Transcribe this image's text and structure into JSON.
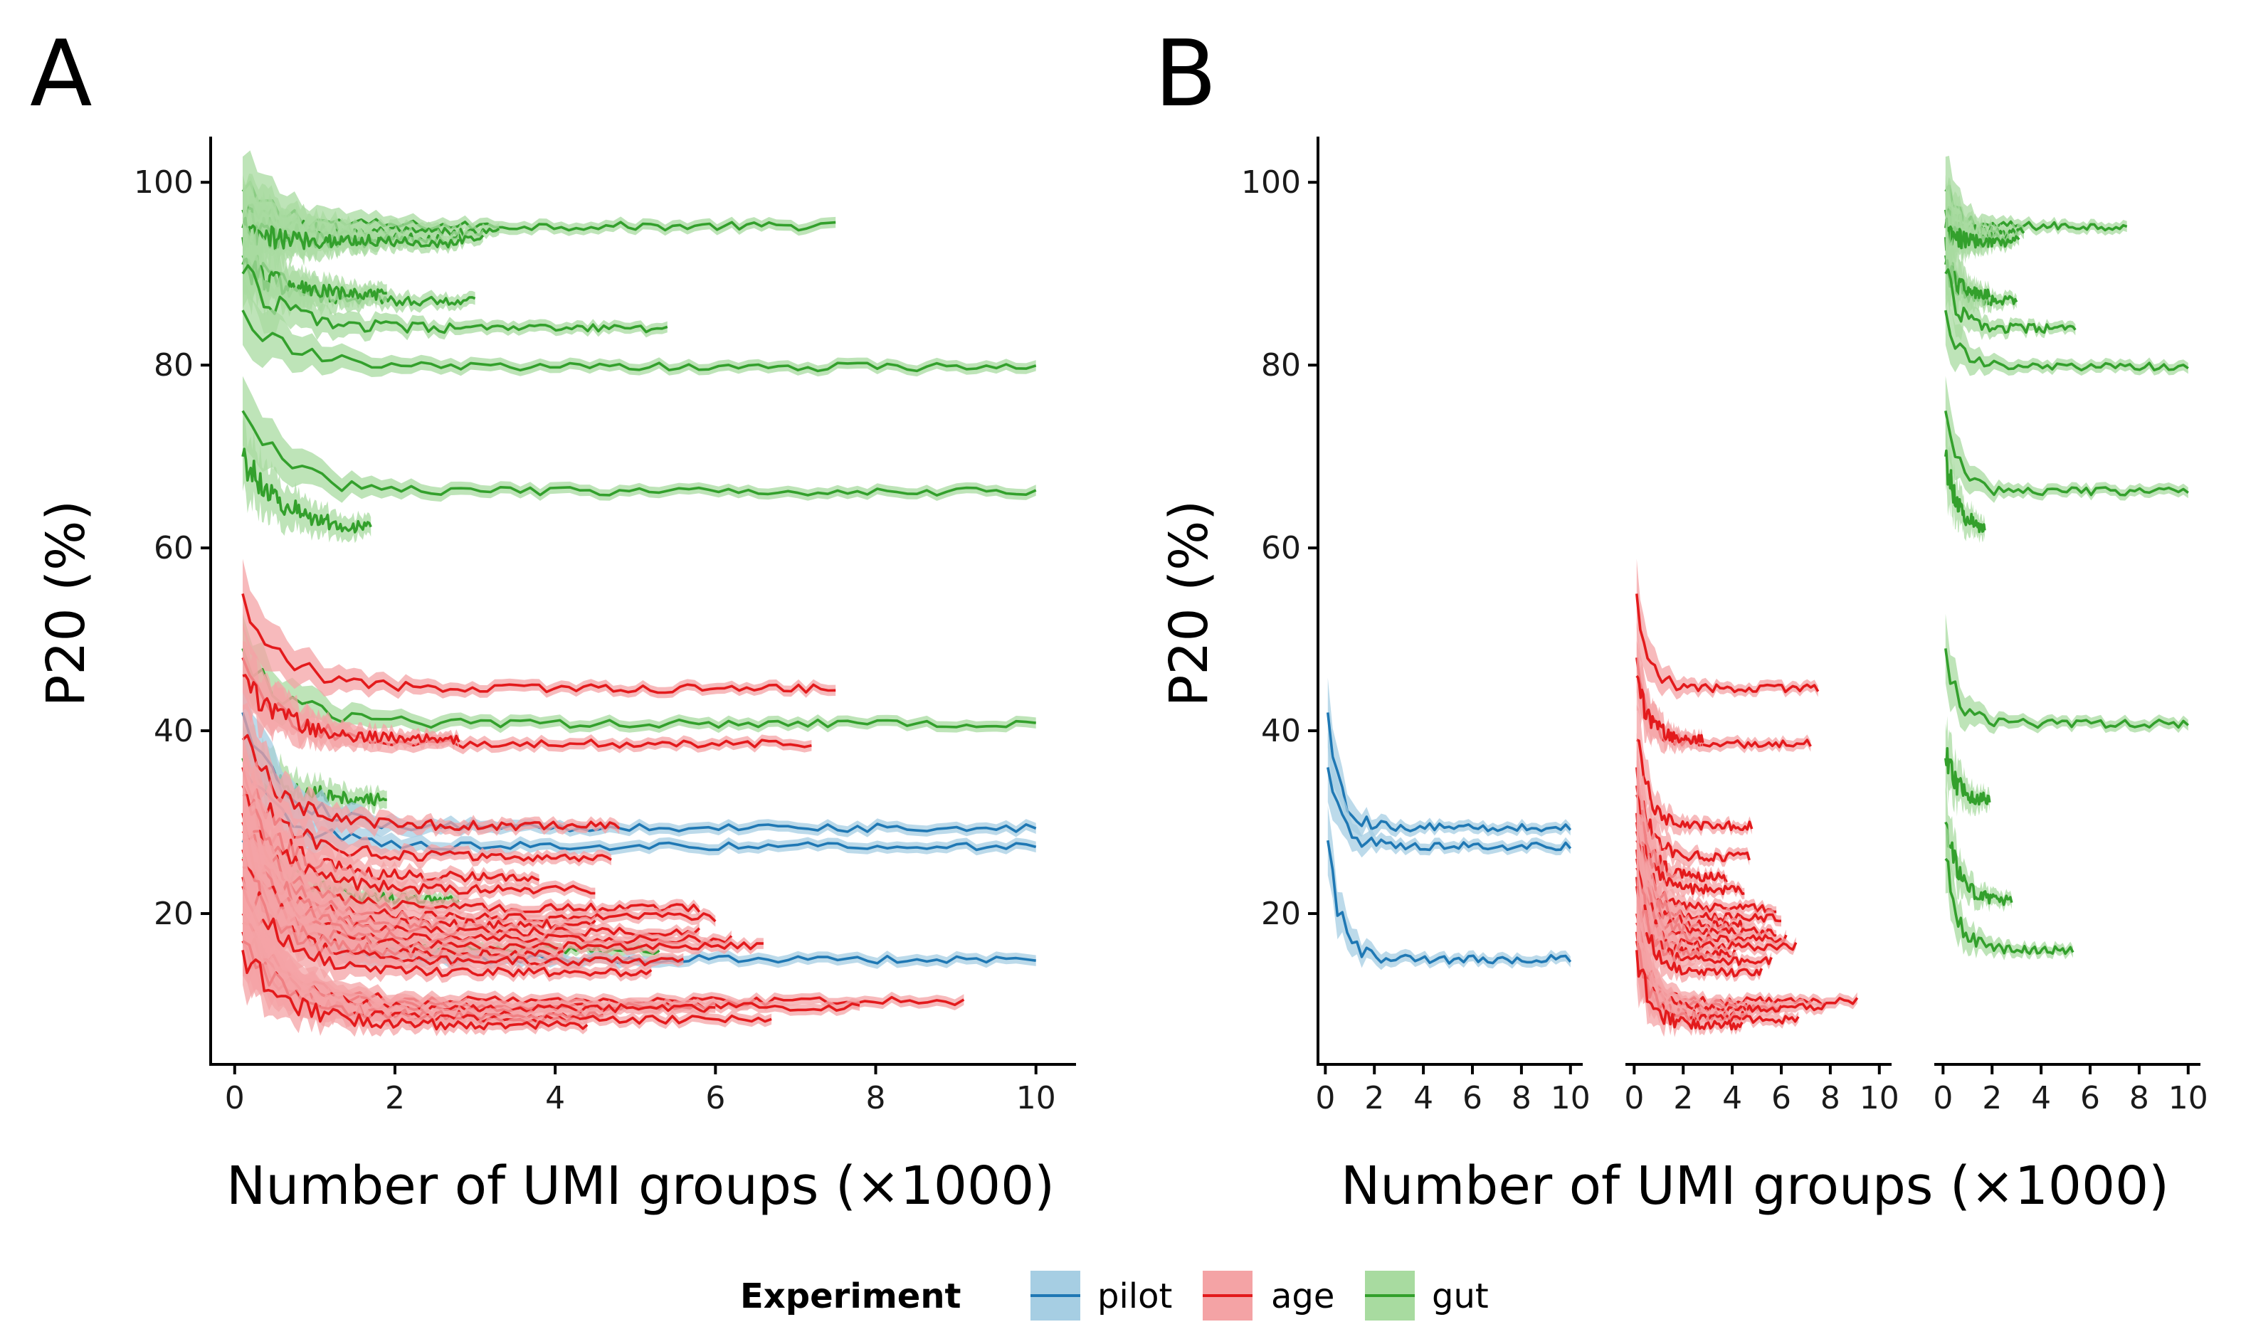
{
  "panels": {
    "a": {
      "letter": "A"
    },
    "b": {
      "letter": "B"
    }
  },
  "axes": {
    "ylabel": "P20 (%)",
    "xlabel": "Number of UMI groups (×1000)"
  },
  "legend": {
    "title": "Experiment",
    "placement": "bottom",
    "items": [
      {
        "key": "pilot",
        "label": "pilot",
        "color": "#1f78b4",
        "fill": "#a6cee3"
      },
      {
        "key": "age",
        "label": "age",
        "color": "#e31a1c",
        "fill": "#f4a3a5"
      },
      {
        "key": "gut",
        "label": "gut",
        "color": "#33a02c",
        "fill": "#a8dba0"
      }
    ]
  },
  "chart_data": [
    {
      "panel": "A",
      "type": "line",
      "xlabel": "Number of UMI groups (×1000)",
      "ylabel": "P20 (%)",
      "xlim": [
        -0.3,
        10.5
      ],
      "ylim": [
        3.5,
        105
      ],
      "x_ticks": [
        0,
        2,
        4,
        6,
        8,
        10
      ],
      "x_tick_labels": [
        "0",
        "2",
        "4",
        "6",
        "8",
        "10"
      ],
      "y_ticks": [
        20,
        40,
        60,
        80,
        100
      ],
      "y_tick_labels": [
        "20",
        "40",
        "60",
        "80",
        "100"
      ],
      "grid": false,
      "series": [
        {
          "group": "gut",
          "x0": 0.1,
          "xmax": 7.5,
          "start": 99,
          "end": 95.2
        },
        {
          "group": "gut",
          "x0": 0.1,
          "xmax": 3.3,
          "start": 97,
          "end": 94.5
        },
        {
          "group": "gut",
          "x0": 0.1,
          "xmax": 3.1,
          "start": 96,
          "end": 93.8
        },
        {
          "group": "gut",
          "x0": 0.1,
          "xmax": 2.8,
          "start": 95,
          "end": 93.4
        },
        {
          "group": "gut",
          "x0": 0.1,
          "xmax": 1.8,
          "start": 94,
          "end": 93.6
        },
        {
          "group": "gut",
          "x0": 0.1,
          "xmax": 3.0,
          "start": 92,
          "end": 87.0
        },
        {
          "group": "gut",
          "x0": 0.1,
          "xmax": 1.9,
          "start": 91,
          "end": 87.5
        },
        {
          "group": "gut",
          "x0": 0.1,
          "xmax": 5.4,
          "start": 90,
          "end": 84.0
        },
        {
          "group": "gut",
          "x0": 0.1,
          "xmax": 10.0,
          "start": 86,
          "end": 79.8
        },
        {
          "group": "gut",
          "x0": 0.1,
          "xmax": 10.0,
          "start": 75,
          "end": 66.2
        },
        {
          "group": "gut",
          "x0": 0.1,
          "xmax": 1.7,
          "start": 70,
          "end": 61.8
        },
        {
          "group": "gut",
          "x0": 0.1,
          "xmax": 10.0,
          "start": 49,
          "end": 40.8
        },
        {
          "group": "gut",
          "x0": 0.1,
          "xmax": 1.9,
          "start": 37,
          "end": 32.3
        },
        {
          "group": "gut",
          "x0": 0.1,
          "xmax": 2.8,
          "start": 30,
          "end": 21.4
        },
        {
          "group": "gut",
          "x0": 0.1,
          "xmax": 5.3,
          "start": 26,
          "end": 16.0
        },
        {
          "group": "pilot",
          "x0": 0.1,
          "xmax": 10.0,
          "start": 42,
          "end": 29.4
        },
        {
          "group": "pilot",
          "x0": 0.1,
          "xmax": 10.0,
          "start": 36,
          "end": 27.4
        },
        {
          "group": "pilot",
          "x0": 0.1,
          "xmax": 10.0,
          "start": 28,
          "end": 15.0
        },
        {
          "group": "age",
          "x0": 0.1,
          "xmax": 7.5,
          "start": 55,
          "end": 44.6
        },
        {
          "group": "age",
          "x0": 0.1,
          "xmax": 7.2,
          "start": 48,
          "end": 38.6
        },
        {
          "group": "age",
          "x0": 0.1,
          "xmax": 2.8,
          "start": 46,
          "end": 39.0
        },
        {
          "group": "age",
          "x0": 0.1,
          "xmax": 4.8,
          "start": 39,
          "end": 29.6
        },
        {
          "group": "age",
          "x0": 0.1,
          "xmax": 4.7,
          "start": 36,
          "end": 26.2
        },
        {
          "group": "age",
          "x0": 0.1,
          "xmax": 3.8,
          "start": 34,
          "end": 24.0
        },
        {
          "group": "age",
          "x0": 0.1,
          "xmax": 4.5,
          "start": 33,
          "end": 22.6
        },
        {
          "group": "age",
          "x0": 0.1,
          "xmax": 5.8,
          "start": 31,
          "end": 20.6
        },
        {
          "group": "age",
          "x0": 0.1,
          "xmax": 6.0,
          "start": 30,
          "end": 19.6
        },
        {
          "group": "age",
          "x0": 0.1,
          "xmax": 4.5,
          "start": 29,
          "end": 18.8
        },
        {
          "group": "age",
          "x0": 0.1,
          "xmax": 5.8,
          "start": 28,
          "end": 18.0
        },
        {
          "group": "age",
          "x0": 0.1,
          "xmax": 6.2,
          "start": 27,
          "end": 17.2
        },
        {
          "group": "age",
          "x0": 0.1,
          "xmax": 6.6,
          "start": 26,
          "end": 16.4
        },
        {
          "group": "age",
          "x0": 0.1,
          "xmax": 4.1,
          "start": 25,
          "end": 15.6
        },
        {
          "group": "age",
          "x0": 0.1,
          "xmax": 5.6,
          "start": 24,
          "end": 14.8
        },
        {
          "group": "age",
          "x0": 0.1,
          "xmax": 5.2,
          "start": 23,
          "end": 13.6
        },
        {
          "group": "age",
          "x0": 0.1,
          "xmax": 9.1,
          "start": 20,
          "end": 10.4
        },
        {
          "group": "age",
          "x0": 0.1,
          "xmax": 7.8,
          "start": 19,
          "end": 9.8
        },
        {
          "group": "age",
          "x0": 0.1,
          "xmax": 6.0,
          "start": 18,
          "end": 9.6
        },
        {
          "group": "age",
          "x0": 0.1,
          "xmax": 4.6,
          "start": 17,
          "end": 8.8
        },
        {
          "group": "age",
          "x0": 0.1,
          "xmax": 6.7,
          "start": 17,
          "end": 8.4
        },
        {
          "group": "age",
          "x0": 0.1,
          "xmax": 4.4,
          "start": 16,
          "end": 7.8
        }
      ]
    },
    {
      "panel": "B",
      "type": "line",
      "facets": [
        "pilot",
        "age",
        "gut"
      ],
      "xlabel": "Number of UMI groups (×1000)",
      "ylabel": "P20 (%)",
      "xlim": [
        -0.3,
        10.5
      ],
      "ylim": [
        3.5,
        105
      ],
      "x_ticks": [
        0,
        2,
        4,
        6,
        8,
        10
      ],
      "x_tick_labels": [
        "0",
        "2",
        "4",
        "6",
        "8",
        "10"
      ],
      "y_ticks": [
        20,
        40,
        60,
        80,
        100
      ],
      "y_tick_labels": [
        "20",
        "40",
        "60",
        "80",
        "100"
      ],
      "grid": false,
      "series_source": "same traces as panel A, split by experiment"
    }
  ]
}
